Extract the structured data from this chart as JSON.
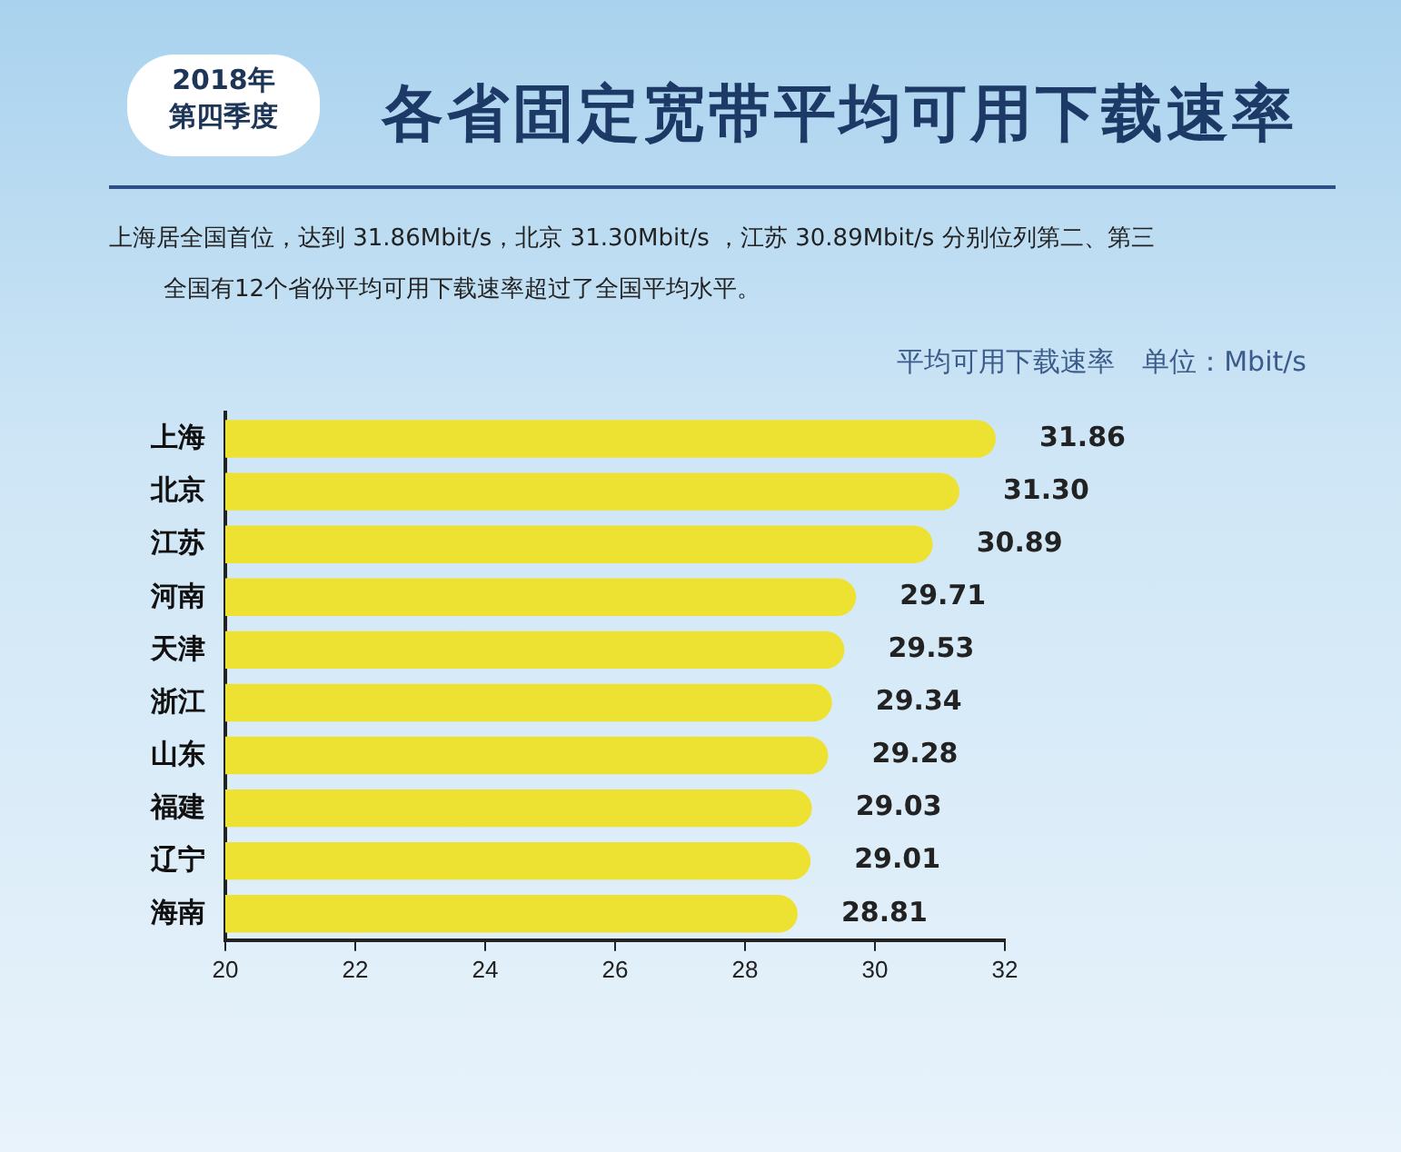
{
  "chart_data": {
    "type": "bar",
    "orientation": "horizontal",
    "title": "各省固定宽带平均可用下载速率",
    "subtitle": "2018年第四季度",
    "annotations": [
      "上海居全国首位，达到 31.86Mbit/s，北京 31.30Mbit/s ，江苏 30.89Mbit/s 分别位列第二、第三",
      "全国有12个省份平均可用下载速率超过了全国平均水平。"
    ],
    "xlabel": "平均可用下载速率　单位：Mbit/s",
    "categories": [
      "上海",
      "北京",
      "江苏",
      "河南",
      "天津",
      "浙江",
      "山东",
      "福建",
      "辽宁",
      "海南"
    ],
    "values": [
      31.86,
      31.3,
      30.89,
      29.71,
      29.53,
      29.34,
      29.28,
      29.03,
      29.01,
      28.81
    ],
    "value_labels": [
      "31.86",
      "31.30",
      "30.89",
      "29.71",
      "29.53",
      "29.34",
      "29.28",
      "29.03",
      "29.01",
      "28.81"
    ],
    "color": "#ede232",
    "xlim": [
      20,
      32
    ],
    "xticks": [
      20,
      22,
      24,
      26,
      28,
      30,
      32
    ],
    "grid": false,
    "legend": false
  }
}
